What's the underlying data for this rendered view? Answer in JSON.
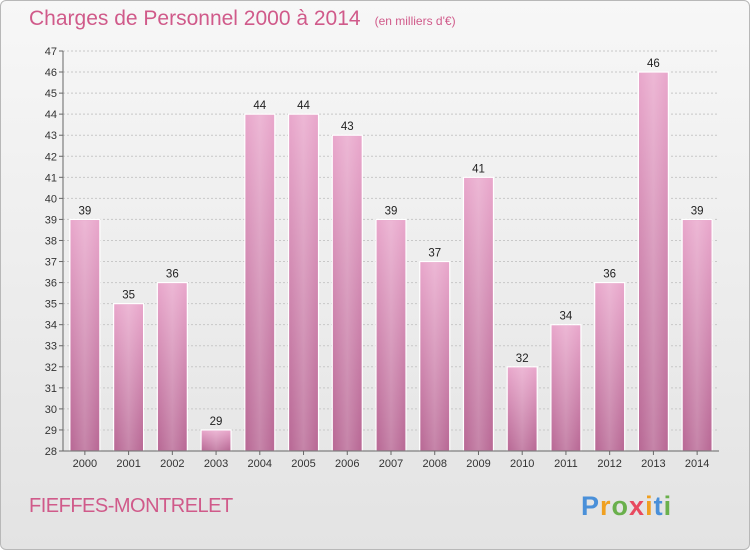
{
  "header": {
    "title": "Charges de Personnel 2000 à 2014",
    "subtitle": "(en milliers d'€)"
  },
  "footer": {
    "commune": "FIEFFES-MONTRELET",
    "logo_letters": [
      "P",
      "r",
      "o",
      "x",
      "i",
      "t",
      "i"
    ],
    "logo_colors": [
      "#4a90d9",
      "#f0a020",
      "#6ab04c",
      "#e84a5f",
      "#f0a020",
      "#4a90d9",
      "#6ab04c"
    ]
  },
  "chart_data": {
    "type": "bar",
    "title": "Charges de Personnel 2000 à 2014",
    "subtitle": "(en milliers d'€)",
    "categories": [
      "2000",
      "2001",
      "2002",
      "2003",
      "2004",
      "2005",
      "2006",
      "2007",
      "2008",
      "2009",
      "2010",
      "2011",
      "2012",
      "2013",
      "2014"
    ],
    "values": [
      39,
      35,
      36,
      29,
      44,
      44,
      43,
      39,
      37,
      41,
      32,
      34,
      36,
      46,
      39
    ],
    "ylim": [
      28,
      47
    ],
    "yticks": [
      28,
      29,
      30,
      31,
      32,
      33,
      34,
      35,
      36,
      37,
      38,
      39,
      40,
      41,
      42,
      43,
      44,
      45,
      46,
      47
    ],
    "grid": true,
    "bar_color": "#d889b3"
  }
}
